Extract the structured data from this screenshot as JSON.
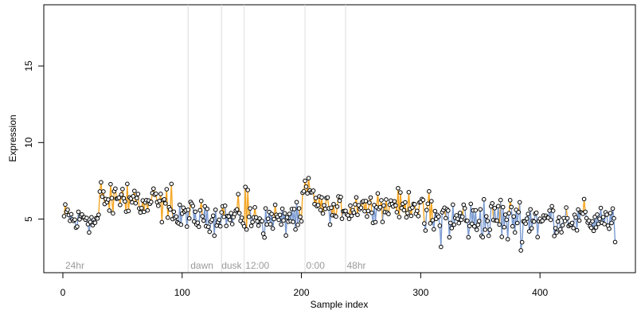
{
  "chart_data": {
    "type": "scatter",
    "xlabel": "Sample index",
    "ylabel": "Expression",
    "xlim": [
      -16,
      480
    ],
    "ylim": [
      1.5,
      19.0
    ],
    "x_ticks": [
      0,
      100,
      200,
      300,
      400
    ],
    "y_ticks": [
      5,
      10,
      15
    ],
    "grid": false,
    "colors": {
      "line": "#7b9bd1",
      "above": "#f5a623",
      "marker_fill": "#ffffff",
      "marker_stroke": "#000000",
      "vline": "#dcdcdc",
      "annotation": "#9a9a9a"
    },
    "baseline": 5.4,
    "vlines": [
      105,
      133,
      152,
      203,
      237
    ],
    "annotations": [
      {
        "x": 2,
        "text": "24hr"
      },
      {
        "x": 107,
        "text": "dawn"
      },
      {
        "x": 133,
        "text": "dusk"
      },
      {
        "x": 153,
        "text": "12:00"
      },
      {
        "x": 204,
        "text": "0:00"
      },
      {
        "x": 238,
        "text": "48hr"
      }
    ],
    "series": [
      {
        "segments": [
          {
            "x0": 1,
            "x1": 30,
            "center": 5.0,
            "amp": 0.45
          },
          {
            "x0": 31,
            "x1": 60,
            "center": 6.3,
            "amp": 0.55
          },
          {
            "x0": 61,
            "x1": 90,
            "center": 6.0,
            "amp": 0.5
          },
          {
            "x0": 91,
            "x1": 150,
            "center": 5.2,
            "amp": 0.45
          },
          {
            "x0": 151,
            "x1": 200,
            "center": 5.0,
            "amp": 0.5
          },
          {
            "x0": 201,
            "x1": 215,
            "center": 6.5,
            "amp": 0.45
          },
          {
            "x0": 216,
            "x1": 240,
            "center": 5.6,
            "amp": 0.4
          },
          {
            "x0": 241,
            "x1": 300,
            "center": 5.9,
            "amp": 0.45
          },
          {
            "x0": 301,
            "x1": 400,
            "center": 5.0,
            "amp": 0.75
          },
          {
            "x0": 401,
            "x1": 462,
            "center": 5.0,
            "amp": 0.45
          }
        ],
        "outliers": [
          {
            "x": 34,
            "y": 6.8
          },
          {
            "x": 54,
            "y": 7.3
          },
          {
            "x": 91,
            "y": 7.3
          },
          {
            "x": 153,
            "y": 7.1
          },
          {
            "x": 155,
            "y": 6.9
          },
          {
            "x": 203,
            "y": 7.5
          },
          {
            "x": 306,
            "y": 6.0
          },
          {
            "x": 463,
            "y": 3.5
          }
        ]
      }
    ]
  }
}
